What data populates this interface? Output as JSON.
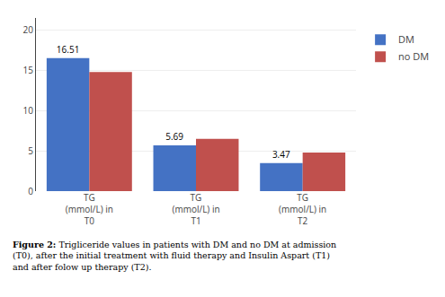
{
  "chart_data": {
    "type": "bar",
    "categories": [
      "TG\n(mmol/L) in\nT0",
      "TG\n(mmol/L) in\nT1",
      "TG\n(mmol/L) in\nT2"
    ],
    "series": [
      {
        "name": "DM",
        "color": "#4472C4",
        "values": [
          16.51,
          5.69,
          3.47
        ],
        "data_labels": true
      },
      {
        "name": "no DM",
        "color": "#C0504D",
        "values": [
          14.8,
          6.5,
          4.8
        ],
        "data_labels": false
      }
    ],
    "ylim": [
      0,
      21.5
    ],
    "yticks": [
      0,
      5,
      10,
      15,
      20
    ],
    "grid": true,
    "legend": "right",
    "caption_label": "Figure 2:",
    "caption": " Trigliceride values in patients with DM and no DM at admission\n(T0), after the initial treatment with fluid therapy and Insulin Aspart (T1)\nand after folow up therapy (T2)."
  }
}
